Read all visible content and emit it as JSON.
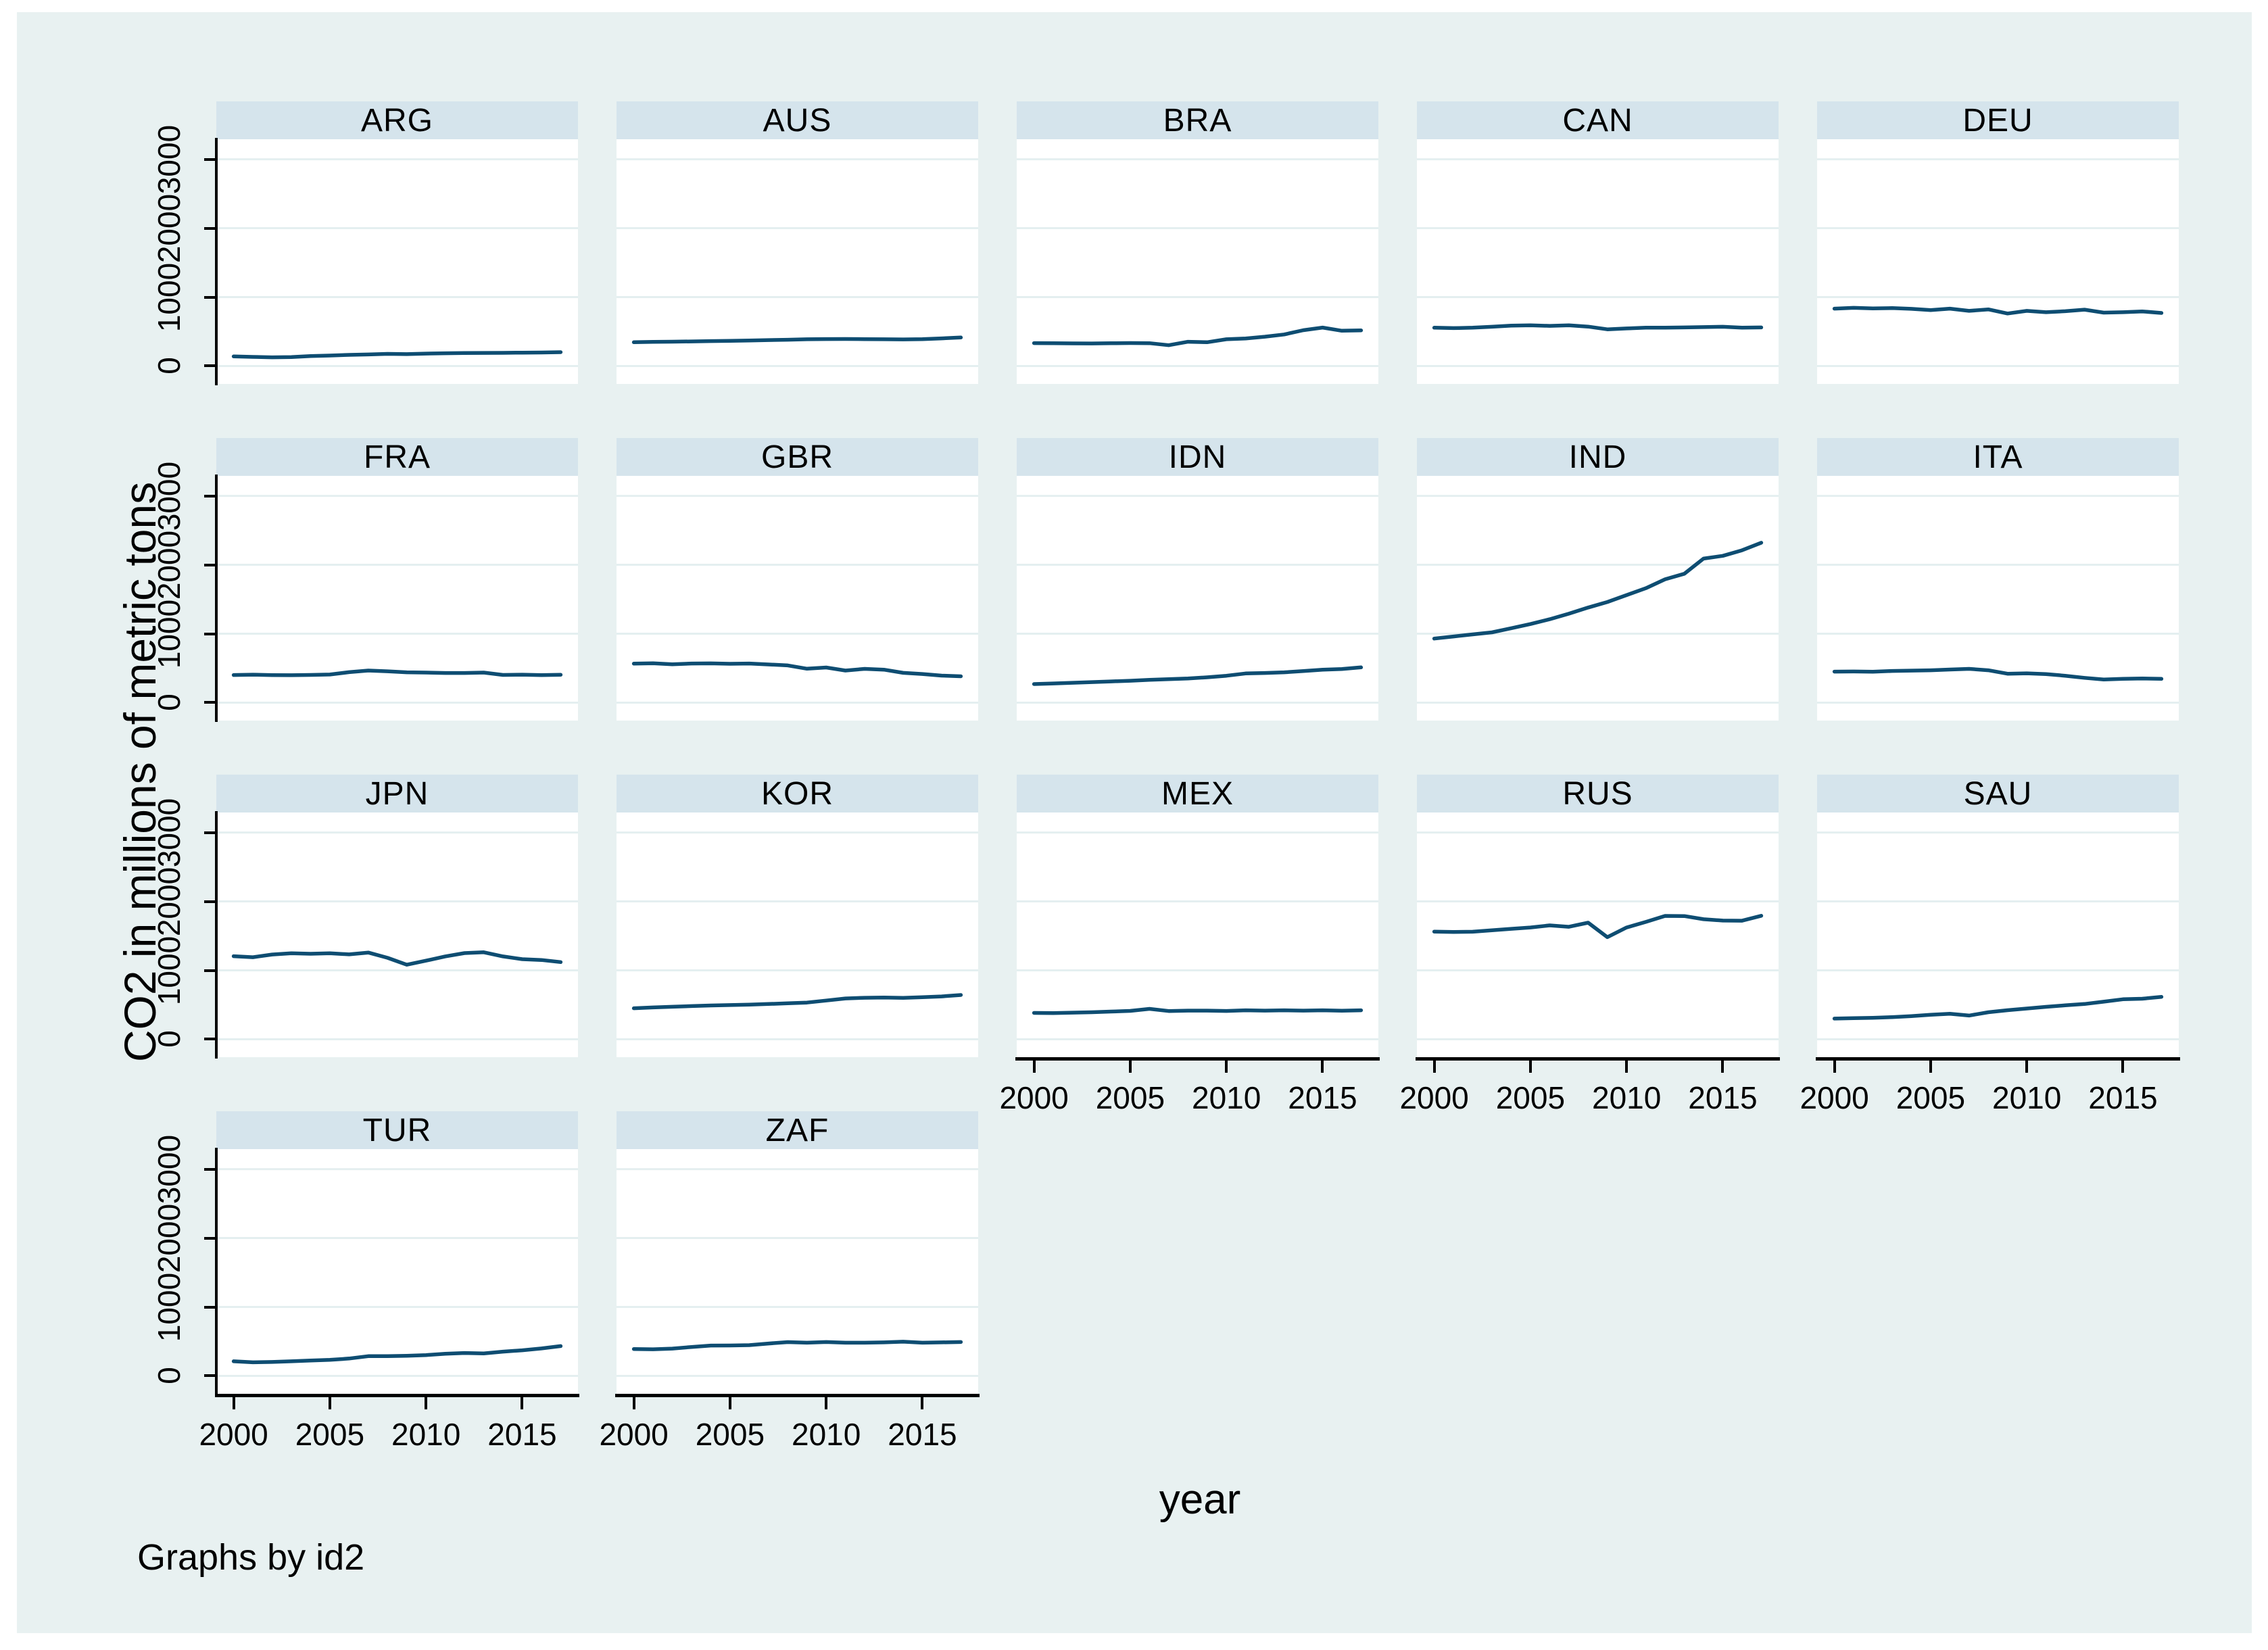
{
  "colors": {
    "page_background": "#FFFFFF",
    "canvas_background": "#E8F1F1",
    "panel_header_fill": "#D5E4EC",
    "plot_background": "#FFFFFF",
    "gridline": "#E4EFF0",
    "series_line": "#0E4D72",
    "axis": "#000000",
    "text": "#000000"
  },
  "chart_data": {
    "type": "line",
    "title": "",
    "xlabel": "year",
    "ylabel": "CO2 in millions of metric tons",
    "caption": "Graphs by id2",
    "grid": true,
    "legend_position": "none",
    "layout_hint": {
      "columns": 5,
      "rows": 4,
      "shared_x": true,
      "shared_y": true
    },
    "x": [
      2000,
      2001,
      2002,
      2003,
      2004,
      2005,
      2006,
      2007,
      2008,
      2009,
      2010,
      2011,
      2012,
      2013,
      2014,
      2015,
      2016,
      2017
    ],
    "x_ticks": [
      2000,
      2005,
      2010,
      2015
    ],
    "y_ticks": [
      0,
      1000,
      2000,
      3000
    ],
    "xlim": [
      1999.1,
      2017.9
    ],
    "ylim": [
      -260,
      3290
    ],
    "panels": [
      {
        "title": "ARG",
        "values": [
          140,
          132,
          126,
          130,
          145,
          152,
          162,
          168,
          176,
          172,
          180,
          185,
          188,
          190,
          191,
          194,
          196,
          201
        ]
      },
      {
        "title": "AUS",
        "values": [
          345,
          350,
          353,
          357,
          362,
          366,
          371,
          376,
          381,
          388,
          391,
          392,
          390,
          388,
          386,
          390,
          401,
          414
        ]
      },
      {
        "title": "BRA",
        "values": [
          332,
          330,
          328,
          327,
          330,
          333,
          331,
          302,
          352,
          345,
          388,
          400,
          425,
          458,
          520,
          558,
          512,
          518
        ]
      },
      {
        "title": "CAN",
        "values": [
          556,
          550,
          556,
          570,
          586,
          590,
          582,
          590,
          572,
          532,
          545,
          556,
          556,
          560,
          565,
          570,
          556,
          560
        ]
      },
      {
        "title": "DEU",
        "values": [
          832,
          844,
          836,
          840,
          830,
          812,
          832,
          800,
          822,
          762,
          800,
          780,
          795,
          818,
          775,
          780,
          792,
          770
        ]
      },
      {
        "title": "FRA",
        "values": [
          401,
          406,
          400,
          398,
          402,
          408,
          442,
          466,
          455,
          440,
          436,
          430,
          430,
          436,
          402,
          406,
          400,
          405
        ]
      },
      {
        "title": "GBR",
        "values": [
          566,
          572,
          556,
          568,
          570,
          564,
          568,
          554,
          540,
          492,
          510,
          466,
          490,
          478,
          432,
          416,
          392,
          382
        ]
      },
      {
        "title": "IDN",
        "values": [
          270,
          278,
          288,
          298,
          308,
          318,
          330,
          340,
          350,
          368,
          390,
          424,
          430,
          440,
          458,
          478,
          488,
          512
        ]
      },
      {
        "title": "IND",
        "values": [
          930,
          960,
          990,
          1020,
          1080,
          1140,
          1210,
          1290,
          1380,
          1460,
          1560,
          1660,
          1790,
          1870,
          2090,
          2130,
          2210,
          2320
        ]
      },
      {
        "title": "ITA",
        "values": [
          450,
          452,
          448,
          460,
          465,
          470,
          480,
          490,
          470,
          420,
          425,
          415,
          390,
          360,
          335,
          345,
          350,
          345
        ]
      },
      {
        "title": "JPN",
        "values": [
          1205,
          1190,
          1230,
          1248,
          1240,
          1248,
          1232,
          1258,
          1182,
          1082,
          1140,
          1202,
          1250,
          1262,
          1202,
          1162,
          1150,
          1120
        ]
      },
      {
        "title": "KOR",
        "values": [
          450,
          462,
          472,
          481,
          490,
          496,
          502,
          512,
          522,
          532,
          562,
          592,
          602,
          606,
          600,
          610,
          622,
          642
        ]
      },
      {
        "title": "MEX",
        "values": [
          382,
          380,
          386,
          392,
          402,
          412,
          441,
          410,
          416,
          416,
          411,
          421,
          416,
          421,
          416,
          421,
          415,
          421
        ]
      },
      {
        "title": "RUS",
        "values": [
          1562,
          1556,
          1560,
          1582,
          1602,
          1622,
          1652,
          1632,
          1692,
          1482,
          1622,
          1702,
          1790,
          1788,
          1742,
          1722,
          1720,
          1792
        ]
      },
      {
        "title": "SAU",
        "values": [
          300,
          306,
          312,
          322,
          336,
          356,
          371,
          344,
          392,
          422,
          446,
          471,
          492,
          512,
          545,
          580,
          588,
          615
        ]
      },
      {
        "title": "TUR",
        "values": [
          212,
          197,
          202,
          212,
          222,
          232,
          252,
          286,
          287,
          292,
          302,
          322,
          332,
          326,
          352,
          372,
          398,
          432
        ]
      },
      {
        "title": "ZAF",
        "values": [
          390,
          386,
          396,
          420,
          440,
          441,
          446,
          470,
          490,
          481,
          491,
          481,
          481,
          486,
          496,
          481,
          486,
          491
        ]
      }
    ]
  }
}
